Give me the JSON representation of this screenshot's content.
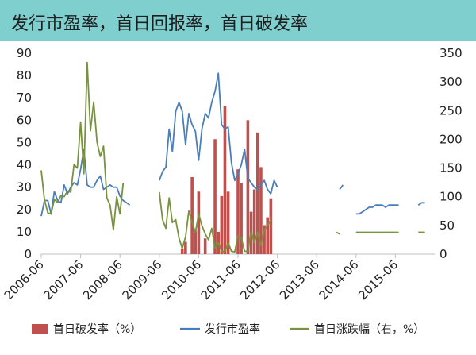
{
  "header": {
    "title": "发行市盈率，首日回报率，首日破发率"
  },
  "colors": {
    "banner": "#7fcfcf",
    "pe": "#4a7ebb",
    "return": "#77933c",
    "breakRate": "#c0504d"
  },
  "chart_data": {
    "type": "bar+line",
    "title": "发行市盈率，首日回报率，首日破发率",
    "x_tick_labels": [
      "2006-06",
      "2007-06",
      "2008-06",
      "2009-06",
      "2010-06",
      "2011-06",
      "2012-06",
      "2013-06",
      "2014-06",
      "2015-06"
    ],
    "x_range": [
      "2006-06",
      "2016-06"
    ],
    "left_axis": {
      "ylim": [
        0,
        90
      ],
      "ticks": [
        0,
        10,
        20,
        30,
        40,
        50,
        60,
        70,
        80,
        90
      ]
    },
    "right_axis": {
      "ylim": [
        0,
        350
      ],
      "ticks": [
        0,
        50,
        100,
        150,
        200,
        250,
        300,
        350
      ],
      "unit": "%"
    },
    "legend": {
      "position": "bottom",
      "items": [
        "首日破发率（%）",
        "发行市盈率",
        "首日涨跌幅（右，%）"
      ]
    },
    "series": [
      {
        "name": "首日破发率（%）",
        "type": "bar",
        "axis": "left",
        "points": [
          [
            "2010-01",
            2.5
          ],
          [
            "2010-02",
            5.5
          ],
          [
            "2010-04",
            34.5
          ],
          [
            "2010-05",
            10.5
          ],
          [
            "2010-06",
            28
          ],
          [
            "2010-08",
            7
          ],
          [
            "2010-11",
            51.5
          ],
          [
            "2010-12",
            10
          ],
          [
            "2011-01",
            26
          ],
          [
            "2011-02",
            66.5
          ],
          [
            "2011-03",
            28
          ],
          [
            "2011-06",
            38
          ],
          [
            "2011-07",
            32
          ],
          [
            "2011-09",
            60
          ],
          [
            "2011-10",
            19
          ],
          [
            "2011-11",
            29
          ],
          [
            "2011-12",
            54.5
          ],
          [
            "2012-01",
            39
          ],
          [
            "2012-02",
            13
          ],
          [
            "2012-03",
            16.5
          ],
          [
            "2012-04",
            25
          ]
        ]
      },
      {
        "name": "发行市盈率",
        "type": "line",
        "axis": "left",
        "segments": [
          [
            [
              "2006-06",
              17
            ],
            [
              "2006-07",
              24
            ],
            [
              "2006-08",
              24
            ],
            [
              "2006-09",
              18
            ],
            [
              "2006-10",
              28
            ],
            [
              "2006-11",
              24
            ],
            [
              "2006-12",
              23
            ],
            [
              "2007-01",
              31
            ],
            [
              "2007-02",
              27
            ],
            [
              "2007-03",
              30
            ],
            [
              "2007-04",
              32
            ],
            [
              "2007-05",
              31
            ],
            [
              "2007-06",
              38
            ],
            [
              "2007-07",
              47
            ],
            [
              "2007-08",
              31
            ],
            [
              "2007-09",
              30
            ],
            [
              "2007-10",
              30
            ],
            [
              "2007-11",
              33
            ],
            [
              "2007-12",
              35
            ],
            [
              "2008-01",
              29
            ],
            [
              "2008-02",
              30
            ],
            [
              "2008-03",
              31
            ],
            [
              "2008-04",
              30
            ],
            [
              "2008-05",
              30
            ],
            [
              "2008-06",
              26
            ],
            [
              "2008-07",
              24
            ],
            [
              "2008-08",
              23
            ],
            [
              "2008-09",
              22
            ]
          ],
          [
            [
              "2009-06",
              33
            ],
            [
              "2009-07",
              37
            ],
            [
              "2009-08",
              39
            ],
            [
              "2009-09",
              56
            ],
            [
              "2009-10",
              46
            ],
            [
              "2009-11",
              64
            ],
            [
              "2009-12",
              68
            ],
            [
              "2010-01",
              64
            ],
            [
              "2010-02",
              49
            ],
            [
              "2010-03",
              63
            ],
            [
              "2010-04",
              58
            ],
            [
              "2010-05",
              55
            ],
            [
              "2010-06",
              42
            ],
            [
              "2010-07",
              56
            ],
            [
              "2010-08",
              63
            ],
            [
              "2010-09",
              61
            ],
            [
              "2010-10",
              68
            ],
            [
              "2010-11",
              73
            ],
            [
              "2010-12",
              81
            ],
            [
              "2011-01",
              58
            ],
            [
              "2011-02",
              56
            ],
            [
              "2011-03",
              57
            ],
            [
              "2011-04",
              41
            ],
            [
              "2011-05",
              33
            ],
            [
              "2011-06",
              36
            ],
            [
              "2011-07",
              40
            ],
            [
              "2011-08",
              47
            ],
            [
              "2011-09",
              34
            ],
            [
              "2011-10",
              32
            ],
            [
              "2011-11",
              30
            ],
            [
              "2011-12",
              29
            ],
            [
              "2012-01",
              31
            ],
            [
              "2012-02",
              33
            ],
            [
              "2012-03",
              29
            ],
            [
              "2012-04",
              27
            ],
            [
              "2012-05",
              33
            ],
            [
              "2012-06",
              30
            ]
          ],
          [
            [
              "2014-01",
              29
            ],
            [
              "2014-02",
              31
            ]
          ],
          [
            [
              "2014-06",
              18
            ],
            [
              "2014-07",
              18
            ],
            [
              "2014-08",
              19
            ],
            [
              "2014-09",
              20
            ],
            [
              "2014-10",
              21
            ],
            [
              "2014-11",
              21
            ],
            [
              "2014-12",
              22
            ],
            [
              "2015-01",
              22
            ],
            [
              "2015-02",
              22
            ],
            [
              "2015-03",
              21
            ],
            [
              "2015-04",
              22
            ],
            [
              "2015-05",
              22
            ],
            [
              "2015-06",
              22
            ],
            [
              "2015-07",
              22
            ]
          ],
          [
            [
              "2016-01",
              22
            ],
            [
              "2016-02",
              23
            ],
            [
              "2016-03",
              23
            ]
          ]
        ]
      },
      {
        "name": "首日涨跌幅（右，%）",
        "type": "line",
        "axis": "right",
        "segments": [
          [
            [
              "2006-06",
              146
            ],
            [
              "2006-07",
              94
            ],
            [
              "2006-08",
              72
            ],
            [
              "2006-09",
              70
            ],
            [
              "2006-10",
              95
            ],
            [
              "2006-11",
              90
            ],
            [
              "2006-12",
              102
            ],
            [
              "2007-01",
              100
            ],
            [
              "2007-02",
              110
            ],
            [
              "2007-03",
              108
            ],
            [
              "2007-04",
              156
            ],
            [
              "2007-05",
              150
            ],
            [
              "2007-06",
              230
            ],
            [
              "2007-07",
              140
            ],
            [
              "2007-08",
              334
            ],
            [
              "2007-09",
              215
            ],
            [
              "2007-10",
              265
            ],
            [
              "2007-11",
              195
            ],
            [
              "2007-12",
              170
            ],
            [
              "2008-01",
              188
            ],
            [
              "2008-02",
              98
            ],
            [
              "2008-03",
              85
            ],
            [
              "2008-04",
              42
            ],
            [
              "2008-05",
              100
            ],
            [
              "2008-06",
              70
            ],
            [
              "2008-07",
              124
            ]
          ],
          [
            [
              "2009-06",
              108
            ],
            [
              "2009-07",
              60
            ],
            [
              "2009-08",
              45
            ],
            [
              "2009-09",
              98
            ],
            [
              "2009-10",
              55
            ],
            [
              "2009-11",
              60
            ],
            [
              "2009-12",
              28
            ],
            [
              "2010-01",
              10
            ],
            [
              "2010-02",
              30
            ],
            [
              "2010-03",
              75
            ],
            [
              "2010-04",
              55
            ],
            [
              "2010-05",
              38
            ],
            [
              "2010-06",
              70
            ],
            [
              "2010-07",
              50
            ],
            [
              "2010-08",
              35
            ],
            [
              "2010-09",
              25
            ],
            [
              "2010-10",
              45
            ],
            [
              "2010-11",
              10
            ],
            [
              "2010-12",
              20
            ],
            [
              "2011-01",
              5
            ],
            [
              "2011-02",
              4
            ],
            [
              "2011-03",
              20
            ],
            [
              "2011-04",
              5
            ],
            [
              "2011-05",
              4
            ],
            [
              "2011-06",
              32
            ],
            [
              "2011-07",
              28
            ],
            [
              "2011-08",
              5
            ],
            [
              "2011-09",
              5
            ],
            [
              "2011-10",
              40
            ],
            [
              "2011-11",
              20
            ],
            [
              "2011-12",
              38
            ],
            [
              "2012-01",
              15
            ],
            [
              "2012-02",
              42
            ],
            [
              "2012-03",
              50
            ],
            [
              "2012-04",
              60
            ]
          ],
          [
            [
              "2013-12",
              38
            ],
            [
              "2014-01",
              35
            ]
          ],
          [
            [
              "2014-06",
              38
            ],
            [
              "2014-07",
              38
            ],
            [
              "2014-08",
              38
            ],
            [
              "2014-09",
              38
            ],
            [
              "2014-10",
              38
            ],
            [
              "2014-11",
              38
            ],
            [
              "2014-12",
              38
            ],
            [
              "2015-01",
              38
            ],
            [
              "2015-02",
              38
            ],
            [
              "2015-03",
              38
            ],
            [
              "2015-04",
              38
            ],
            [
              "2015-05",
              38
            ],
            [
              "2015-06",
              38
            ],
            [
              "2015-07",
              38
            ]
          ],
          [
            [
              "2016-01",
              38
            ],
            [
              "2016-02",
              38
            ],
            [
              "2016-03",
              38
            ]
          ]
        ]
      }
    ]
  }
}
